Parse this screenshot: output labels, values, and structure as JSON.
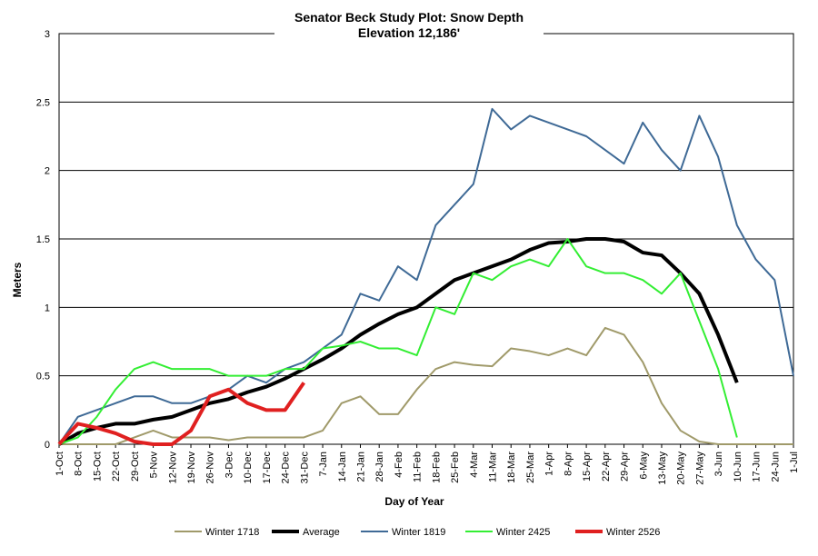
{
  "chart_data": {
    "type": "line",
    "title": "Senator Beck Study Plot: Snow Depth",
    "subtitle": "Elevation 12,186'",
    "x_label": "Day of Year",
    "y_label": "Meters",
    "categories": [
      "1-Oct",
      "8-Oct",
      "15-Oct",
      "22-Oct",
      "29-Oct",
      "5-Nov",
      "12-Nov",
      "19-Nov",
      "26-Nov",
      "3-Dec",
      "10-Dec",
      "17-Dec",
      "24-Dec",
      "31-Dec",
      "7-Jan",
      "14-Jan",
      "21-Jan",
      "28-Jan",
      "4-Feb",
      "11-Feb",
      "18-Feb",
      "25-Feb",
      "4-Mar",
      "11-Mar",
      "18-Mar",
      "25-Mar",
      "1-Apr",
      "8-Apr",
      "15-Apr",
      "22-Apr",
      "29-Apr",
      "6-May",
      "13-May",
      "20-May",
      "27-May",
      "3-Jun",
      "10-Jun",
      "17-Jun",
      "24-Jun",
      "1-Jul"
    ],
    "series": [
      {
        "name": "Winter 1718",
        "color": "#a09a6a",
        "width": 2,
        "values": [
          0,
          0,
          0,
          0,
          0.05,
          0.1,
          0.05,
          0.05,
          0.05,
          0.03,
          0.05,
          0.05,
          0.05,
          0.05,
          0.1,
          0.3,
          0.35,
          0.22,
          0.22,
          0.4,
          0.55,
          0.6,
          0.58,
          0.57,
          0.7,
          0.68,
          0.65,
          0.7,
          0.65,
          0.85,
          0.8,
          0.6,
          0.3,
          0.1,
          0.02,
          0,
          0,
          0,
          0,
          0
        ]
      },
      {
        "name": "Average",
        "color": "#000000",
        "width": 4,
        "values": [
          0,
          0.08,
          0.12,
          0.15,
          0.15,
          0.18,
          0.2,
          0.25,
          0.3,
          0.33,
          0.38,
          0.42,
          0.48,
          0.55,
          0.62,
          0.7,
          0.8,
          0.88,
          0.95,
          1.0,
          1.1,
          1.2,
          1.25,
          1.3,
          1.35,
          1.42,
          1.47,
          1.48,
          1.5,
          1.5,
          1.48,
          1.4,
          1.38,
          1.25,
          1.1,
          0.8,
          0.45,
          null,
          null,
          null
        ]
      },
      {
        "name": "Winter 1819",
        "color": "#3f6a96",
        "width": 2,
        "values": [
          0,
          0.2,
          0.25,
          0.3,
          0.35,
          0.35,
          0.3,
          0.3,
          0.35,
          0.4,
          0.5,
          0.45,
          0.55,
          0.6,
          0.7,
          0.8,
          1.1,
          1.05,
          1.3,
          1.2,
          1.6,
          1.75,
          1.9,
          2.45,
          2.3,
          2.4,
          2.35,
          2.3,
          2.25,
          2.15,
          2.05,
          2.35,
          2.15,
          2.0,
          2.4,
          2.1,
          1.6,
          1.35,
          1.2,
          0.5
        ]
      },
      {
        "name": "Winter 2425",
        "color": "#33ee33",
        "width": 2,
        "values": [
          0,
          0.05,
          0.2,
          0.4,
          0.55,
          0.6,
          0.55,
          0.55,
          0.55,
          0.5,
          0.5,
          0.5,
          0.55,
          0.55,
          0.7,
          0.72,
          0.75,
          0.7,
          0.7,
          0.65,
          1.0,
          0.95,
          1.25,
          1.2,
          1.3,
          1.35,
          1.3,
          1.5,
          1.3,
          1.25,
          1.25,
          1.2,
          1.1,
          1.25,
          0.9,
          0.55,
          0.05,
          null,
          null,
          null
        ]
      },
      {
        "name": "Winter 2526",
        "color": "#e02020",
        "width": 4,
        "values": [
          0,
          0.15,
          0.12,
          0.08,
          0.02,
          0,
          0,
          0.1,
          0.35,
          0.4,
          0.3,
          0.25,
          0.25,
          0.45,
          null,
          null,
          null,
          null,
          null,
          null,
          null,
          null,
          null,
          null,
          null,
          null,
          null,
          null,
          null,
          null,
          null,
          null,
          null,
          null,
          null,
          null,
          null,
          null,
          null,
          null
        ]
      }
    ],
    "ylim": [
      0,
      3
    ],
    "yticks": [
      0,
      0.5,
      1,
      1.5,
      2,
      2.5,
      3
    ],
    "grid": true,
    "legend": "bottom"
  }
}
